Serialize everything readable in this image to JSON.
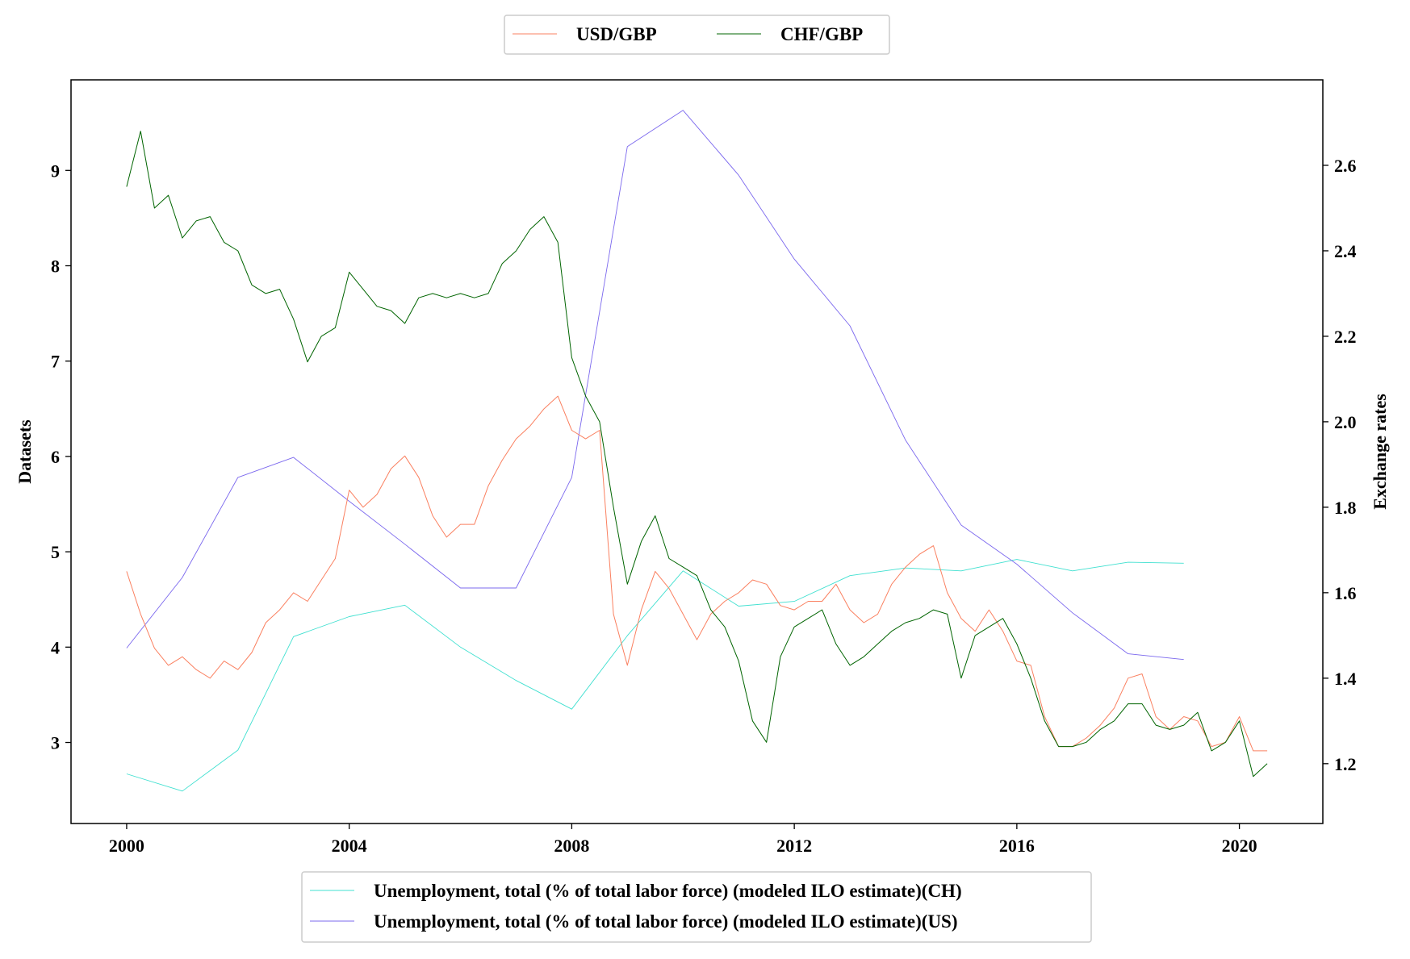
{
  "chart_data": {
    "type": "line",
    "x_ticks": [
      "2000",
      "2004",
      "2008",
      "2012",
      "2016",
      "2020"
    ],
    "xlim": [
      1999.0,
      2021.5
    ],
    "left_axis": {
      "label": "Datasets",
      "ticks": [
        "3",
        "4",
        "5",
        "6",
        "7",
        "8",
        "9"
      ],
      "ylim": [
        2.15,
        9.95
      ]
    },
    "right_axis": {
      "label": "Exchange rates",
      "ticks": [
        "1.2",
        "1.4",
        "1.6",
        "1.8",
        "2.0",
        "2.2",
        "2.4",
        "2.6"
      ],
      "ylim": [
        1.06,
        2.8
      ]
    },
    "legend_top": {
      "position": "upper center",
      "entries": [
        {
          "name": "USD/GBP",
          "color": "#fa8060"
        },
        {
          "name": "CHF/GBP",
          "color": "#006400"
        }
      ]
    },
    "legend_bottom": {
      "position": "lower center",
      "entries": [
        {
          "name": "Unemployment, total (% of total labor force) (modeled ILO estimate)(CH)",
          "color": "#40e0d0"
        },
        {
          "name": "Unemployment, total (% of total labor force) (modeled ILO estimate)(US)",
          "color": "#7b68ee"
        }
      ]
    },
    "series": [
      {
        "name": "Unemployment, total (% of total labor force) (modeled ILO estimate)(CH)",
        "axis": "left",
        "color": "#40e0d0",
        "x": [
          2000,
          2001,
          2002,
          2003,
          2004,
          2005,
          2006,
          2007,
          2008,
          2009,
          2010,
          2011,
          2012,
          2013,
          2014,
          2015,
          2016,
          2017,
          2018,
          2019
        ],
        "y": [
          2.67,
          2.49,
          2.92,
          4.11,
          4.32,
          4.44,
          4.0,
          3.65,
          3.35,
          4.12,
          4.8,
          4.43,
          4.48,
          4.75,
          4.83,
          4.8,
          4.92,
          4.8,
          4.89,
          4.88
        ]
      },
      {
        "name": "Unemployment, total (% of total labor force) (modeled ILO estimate)(US)",
        "axis": "left",
        "color": "#7b68ee",
        "x": [
          2000,
          2001,
          2002,
          2003,
          2004,
          2005,
          2006,
          2007,
          2008,
          2009,
          2010,
          2011,
          2012,
          2013,
          2014,
          2015,
          2016,
          2017,
          2018,
          2019
        ],
        "y": [
          3.99,
          4.73,
          5.78,
          5.99,
          5.53,
          5.08,
          4.62,
          4.62,
          5.78,
          9.25,
          9.63,
          8.95,
          8.07,
          7.37,
          6.17,
          5.28,
          4.87,
          4.36,
          3.93,
          3.87
        ]
      },
      {
        "name": "USD/GBP",
        "axis": "right",
        "color": "#fa8060",
        "x": [
          2000.0,
          2000.25,
          2000.5,
          2000.75,
          2001.0,
          2001.25,
          2001.5,
          2001.75,
          2002.0,
          2002.25,
          2002.5,
          2002.75,
          2003.0,
          2003.25,
          2003.5,
          2003.75,
          2004.0,
          2004.25,
          2004.5,
          2004.75,
          2005.0,
          2005.25,
          2005.5,
          2005.75,
          2006.0,
          2006.25,
          2006.5,
          2006.75,
          2007.0,
          2007.25,
          2007.5,
          2007.75,
          2008.0,
          2008.25,
          2008.5,
          2008.75,
          2009.0,
          2009.25,
          2009.5,
          2009.75,
          2010.0,
          2010.25,
          2010.5,
          2010.75,
          2011.0,
          2011.25,
          2011.5,
          2011.75,
          2012.0,
          2012.25,
          2012.5,
          2012.75,
          2013.0,
          2013.25,
          2013.5,
          2013.75,
          2014.0,
          2014.25,
          2014.5,
          2014.75,
          2015.0,
          2015.25,
          2015.5,
          2015.75,
          2016.0,
          2016.25,
          2016.5,
          2016.75,
          2017.0,
          2017.25,
          2017.5,
          2017.75,
          2018.0,
          2018.25,
          2018.5,
          2018.75,
          2019.0,
          2019.25,
          2019.5,
          2019.75,
          2020.0,
          2020.25,
          2020.5
        ],
        "y": [
          1.65,
          1.55,
          1.47,
          1.43,
          1.45,
          1.42,
          1.4,
          1.44,
          1.42,
          1.46,
          1.53,
          1.56,
          1.6,
          1.58,
          1.63,
          1.68,
          1.84,
          1.8,
          1.83,
          1.89,
          1.92,
          1.87,
          1.78,
          1.73,
          1.76,
          1.76,
          1.85,
          1.91,
          1.96,
          1.99,
          2.03,
          2.06,
          1.98,
          1.96,
          1.98,
          1.55,
          1.43,
          1.56,
          1.65,
          1.61,
          1.55,
          1.49,
          1.55,
          1.58,
          1.6,
          1.63,
          1.62,
          1.57,
          1.56,
          1.58,
          1.58,
          1.62,
          1.56,
          1.53,
          1.55,
          1.62,
          1.66,
          1.69,
          1.71,
          1.6,
          1.54,
          1.51,
          1.56,
          1.51,
          1.44,
          1.43,
          1.31,
          1.24,
          1.24,
          1.26,
          1.29,
          1.33,
          1.4,
          1.41,
          1.31,
          1.28,
          1.31,
          1.3,
          1.24,
          1.25,
          1.31,
          1.23,
          1.23
        ]
      },
      {
        "name": "CHF/GBP",
        "axis": "right",
        "color": "#006400",
        "x": [
          2000.0,
          2000.25,
          2000.5,
          2000.75,
          2001.0,
          2001.25,
          2001.5,
          2001.75,
          2002.0,
          2002.25,
          2002.5,
          2002.75,
          2003.0,
          2003.25,
          2003.5,
          2003.75,
          2004.0,
          2004.25,
          2004.5,
          2004.75,
          2005.0,
          2005.25,
          2005.5,
          2005.75,
          2006.0,
          2006.25,
          2006.5,
          2006.75,
          2007.0,
          2007.25,
          2007.5,
          2007.75,
          2008.0,
          2008.25,
          2008.5,
          2008.75,
          2009.0,
          2009.25,
          2009.5,
          2009.75,
          2010.0,
          2010.25,
          2010.5,
          2010.75,
          2011.0,
          2011.25,
          2011.5,
          2011.75,
          2012.0,
          2012.25,
          2012.5,
          2012.75,
          2013.0,
          2013.25,
          2013.5,
          2013.75,
          2014.0,
          2014.25,
          2014.5,
          2014.75,
          2015.0,
          2015.25,
          2015.5,
          2015.75,
          2016.0,
          2016.25,
          2016.5,
          2016.75,
          2017.0,
          2017.25,
          2017.5,
          2017.75,
          2018.0,
          2018.25,
          2018.5,
          2018.75,
          2019.0,
          2019.25,
          2019.5,
          2019.75,
          2020.0,
          2020.25,
          2020.5
        ],
        "y": [
          2.55,
          2.68,
          2.5,
          2.53,
          2.43,
          2.47,
          2.48,
          2.42,
          2.4,
          2.32,
          2.3,
          2.31,
          2.24,
          2.14,
          2.2,
          2.22,
          2.35,
          2.31,
          2.27,
          2.26,
          2.23,
          2.29,
          2.3,
          2.29,
          2.3,
          2.29,
          2.3,
          2.37,
          2.4,
          2.45,
          2.48,
          2.42,
          2.15,
          2.06,
          2.0,
          1.8,
          1.62,
          1.72,
          1.78,
          1.68,
          1.66,
          1.64,
          1.56,
          1.52,
          1.44,
          1.3,
          1.25,
          1.45,
          1.52,
          1.54,
          1.56,
          1.48,
          1.43,
          1.45,
          1.48,
          1.51,
          1.53,
          1.54,
          1.56,
          1.55,
          1.4,
          1.5,
          1.52,
          1.54,
          1.48,
          1.4,
          1.3,
          1.24,
          1.24,
          1.25,
          1.28,
          1.3,
          1.34,
          1.34,
          1.29,
          1.28,
          1.29,
          1.32,
          1.23,
          1.25,
          1.3,
          1.17,
          1.2
        ]
      }
    ]
  }
}
